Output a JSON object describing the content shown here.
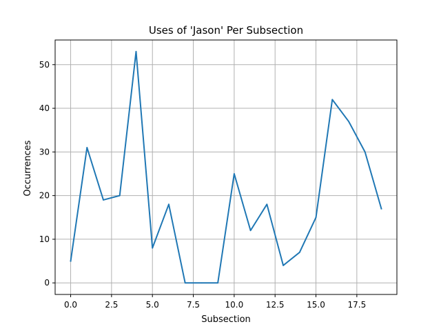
{
  "chart_data": {
    "type": "line",
    "title": "Uses of 'Jason' Per Subsection",
    "xlabel": "Subsection",
    "ylabel": "Occurrences",
    "xlim": [
      -0.95,
      19.95
    ],
    "ylim": [
      -2.65,
      55.65
    ],
    "grid": true,
    "xticks": [
      0.0,
      2.5,
      5.0,
      7.5,
      10.0,
      12.5,
      15.0,
      17.5
    ],
    "xtick_labels": [
      "0.0",
      "2.5",
      "5.0",
      "7.5",
      "10.0",
      "12.5",
      "15.0",
      "17.5"
    ],
    "yticks": [
      0,
      10,
      20,
      30,
      40,
      50
    ],
    "ytick_labels": [
      "0",
      "10",
      "20",
      "30",
      "40",
      "50"
    ],
    "series": [
      {
        "color": "#1f77b4",
        "x": [
          0,
          1,
          2,
          3,
          4,
          5,
          6,
          7,
          8,
          9,
          10,
          11,
          12,
          13,
          14,
          15,
          16,
          17,
          18,
          19
        ],
        "y": [
          5,
          31,
          19,
          20,
          53,
          8,
          18,
          0,
          0,
          0,
          25,
          12,
          18,
          4,
          7,
          15,
          42,
          37,
          30,
          17
        ]
      }
    ]
  }
}
